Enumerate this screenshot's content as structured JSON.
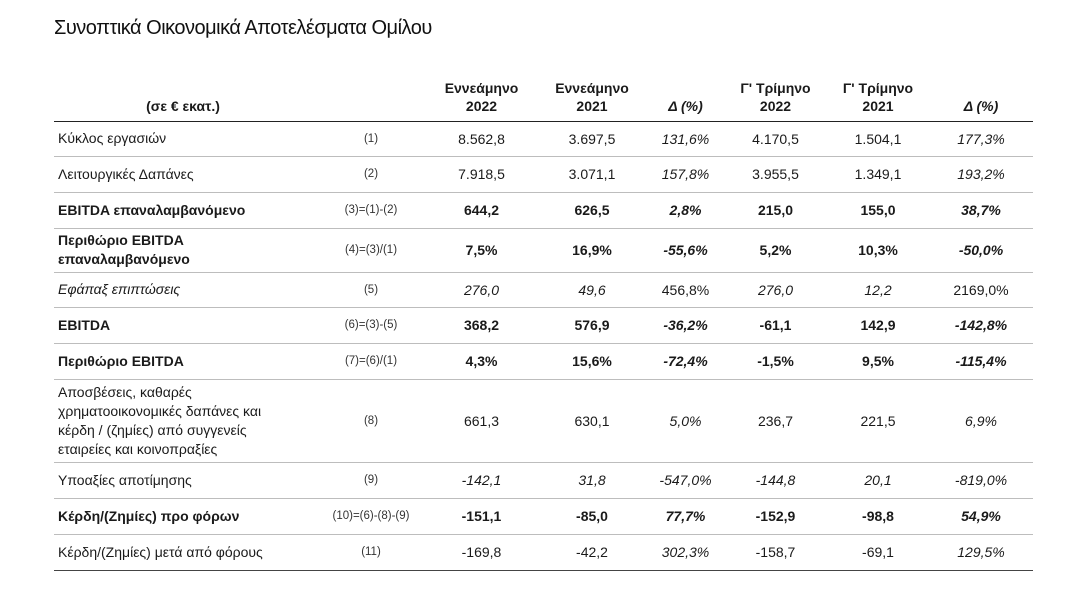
{
  "title": "Συνοπτικά Οικονομικά Αποτελέσματα Ομίλου",
  "header": {
    "unit": "(σε € εκατ.)",
    "cols": [
      "Εννεάμηνο 2022",
      "Εννεάμηνο 2021",
      "Δ (%)",
      "Γ' Τρίμηνο 2022",
      "Γ' Τρίμηνο 2021",
      "Δ (%)"
    ],
    "col1_l1": "Εννεάμηνο",
    "col1_l2": "2022",
    "col2_l1": "Εννεάμηνο",
    "col2_l2": "2021",
    "col3": "Δ (%)",
    "col4_l1": "Γ' Τρίμηνο",
    "col4_l2": "2022",
    "col5_l1": "Γ' Τρίμηνο",
    "col5_l2": "2021",
    "col6": "Δ (%)"
  },
  "rows": [
    {
      "label": "Κύκλος εργασιών",
      "ref": "(1)",
      "v": [
        "8.562,8",
        "3.697,5",
        "131,6%",
        "4.170,5",
        "1.504,1",
        "177,3%"
      ]
    },
    {
      "label": "Λειτουργικές Δαπάνες",
      "ref": "(2)",
      "v": [
        "7.918,5",
        "3.071,1",
        "157,8%",
        "3.955,5",
        "1.349,1",
        "193,2%"
      ]
    },
    {
      "label": "EBITDA επαναλαμβανόμενο",
      "ref": "(3)=(1)-(2)",
      "v": [
        "644,2",
        "626,5",
        "2,8%",
        "215,0",
        "155,0",
        "38,7%"
      ]
    },
    {
      "label": "Περιθώριο EBITDA επαναλαμβανόμενο",
      "label_l1": "Περιθώριο EBITDA",
      "label_l2": "επαναλαμβανόμενο",
      "ref": "(4)=(3)/(1)",
      "v": [
        "7,5%",
        "16,9%",
        "-55,6%",
        "5,2%",
        "10,3%",
        "-50,0%"
      ]
    },
    {
      "label": "Εφάπαξ επιπτώσεις",
      "ref": "(5)",
      "v": [
        "276,0",
        "49,6",
        "456,8%",
        "276,0",
        "12,2",
        "2169,0%"
      ]
    },
    {
      "label": "EBITDA",
      "ref": "(6)=(3)-(5)",
      "v": [
        "368,2",
        "576,9",
        "-36,2%",
        "-61,1",
        "142,9",
        "-142,8%"
      ]
    },
    {
      "label": "Περιθώριο EBITDA",
      "ref": "(7)=(6)/(1)",
      "v": [
        "4,3%",
        "15,6%",
        "-72,4%",
        "-1,5%",
        "9,5%",
        "-115,4%"
      ]
    },
    {
      "label": "Αποσβέσεις, καθαρές χρηματοοικονομικές δαπάνες και κέρδη / (ζημίες) από συγγενείς εταιρείες και κοινοπραξίες",
      "label_l1": "Αποσβέσεις, καθαρές",
      "label_l2": "χρηματοοικονομικές δαπάνες και",
      "label_l3": "κέρδη / (ζημίες)  από συγγενείς",
      "label_l4": "εταιρείες και κοινοπραξίες",
      "ref": "(8)",
      "v": [
        "661,3",
        "630,1",
        "5,0%",
        "236,7",
        "221,5",
        "6,9%"
      ]
    },
    {
      "label": "Υποαξίες αποτίμησης",
      "ref": "(9)",
      "v": [
        "-142,1",
        "31,8",
        "-547,0%",
        "-144,8",
        "20,1",
        "-819,0%"
      ]
    },
    {
      "label": "Κέρδη/(Ζημίες) προ φόρων",
      "ref": "(10)=(6)-(8)-(9)",
      "v": [
        "-151,1",
        "-85,0",
        "77,7%",
        "-152,9",
        "-98,8",
        "54,9%"
      ]
    },
    {
      "label": "Κέρδη/(Ζημίες) μετά από φόρους",
      "ref": "(11)",
      "v": [
        "-169,8",
        "-42,2",
        "302,3%",
        "-158,7",
        "-69,1",
        "129,5%"
      ]
    }
  ]
}
